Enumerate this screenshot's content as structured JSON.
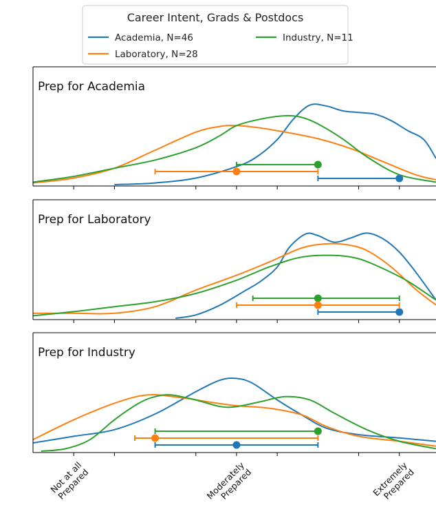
{
  "chart_data": {
    "type": "line",
    "title": "",
    "legend": {
      "title": "Career Intent, Grads & Postdocs",
      "placement": "top-center",
      "entries": [
        {
          "name": "Academia, N=46",
          "color": "#1f77b4"
        },
        {
          "name": "Laboratory, N=28",
          "color": "#ff7f0e"
        },
        {
          "name": "Industry, N=11",
          "color": "#2ca02c"
        }
      ]
    },
    "x_ticks": [
      {
        "value": 1,
        "label": [
          "Not at all",
          "Prepared"
        ]
      },
      {
        "value": 3,
        "label": [
          "Moderately",
          "Prepared"
        ]
      },
      {
        "value": 5,
        "label": [
          "Extremely",
          "Prepared"
        ]
      }
    ],
    "xlim": [
      0.5,
      5.45
    ],
    "grid": false,
    "panels": [
      {
        "title": "Prep for Academia",
        "ylim": [
          0,
          1
        ],
        "series": [
          {
            "name": "Academia, N=46",
            "color": "#1f77b4",
            "x": [
              1.5,
              2.0,
              2.5,
              3.0,
              3.25,
              3.5,
              3.7,
              3.9,
              4.1,
              4.3,
              4.5,
              4.7,
              4.9,
              5.1,
              5.3,
              5.45
            ],
            "y": [
              0.0,
              0.02,
              0.08,
              0.22,
              0.34,
              0.55,
              0.8,
              0.97,
              0.96,
              0.9,
              0.88,
              0.86,
              0.78,
              0.66,
              0.55,
              0.32
            ]
          },
          {
            "name": "Laboratory, N=28",
            "color": "#ff7f0e",
            "x": [
              0.5,
              1.0,
              1.5,
              2.0,
              2.5,
              2.8,
              3.0,
              3.3,
              3.6,
              4.0,
              4.4,
              4.8,
              5.2,
              5.45
            ],
            "y": [
              0.02,
              0.08,
              0.2,
              0.42,
              0.64,
              0.71,
              0.72,
              0.69,
              0.64,
              0.56,
              0.44,
              0.28,
              0.12,
              0.06
            ]
          },
          {
            "name": "Industry, N=11",
            "color": "#2ca02c",
            "x": [
              0.5,
              1.0,
              1.5,
              2.0,
              2.5,
              2.8,
              3.0,
              3.3,
              3.6,
              3.8,
              4.0,
              4.3,
              4.6,
              5.0,
              5.45
            ],
            "y": [
              0.03,
              0.1,
              0.2,
              0.3,
              0.45,
              0.6,
              0.72,
              0.8,
              0.84,
              0.82,
              0.74,
              0.56,
              0.34,
              0.12,
              0.03
            ]
          }
        ],
        "intervals": [
          {
            "name": "Industry, N=11",
            "color": "#2ca02c",
            "low": 3.0,
            "high": 4.0,
            "point": 4.0
          },
          {
            "name": "Laboratory, N=28",
            "color": "#ff7f0e",
            "low": 2.0,
            "high": 4.0,
            "point": 3.0
          },
          {
            "name": "Academia, N=46",
            "color": "#1f77b4",
            "low": 4.0,
            "high": 5.0,
            "point": 5.0
          }
        ]
      },
      {
        "title": "Prep for Laboratory",
        "ylim": [
          0,
          1
        ],
        "series": [
          {
            "name": "Academia, N=46",
            "color": "#1f77b4",
            "x": [
              2.25,
              2.5,
              2.8,
              3.1,
              3.3,
              3.5,
              3.65,
              3.85,
              4.0,
              4.2,
              4.4,
              4.6,
              4.8,
              5.0,
              5.2,
              5.45
            ],
            "y": [
              0.0,
              0.04,
              0.16,
              0.33,
              0.45,
              0.62,
              0.86,
              1.02,
              1.0,
              0.92,
              0.97,
              1.03,
              0.96,
              0.8,
              0.56,
              0.22
            ]
          },
          {
            "name": "Laboratory, N=28",
            "color": "#ff7f0e",
            "x": [
              0.5,
              1.0,
              1.5,
              2.0,
              2.5,
              3.0,
              3.4,
              3.8,
              4.1,
              4.35,
              4.6,
              4.9,
              5.2,
              5.45
            ],
            "y": [
              0.06,
              0.06,
              0.06,
              0.14,
              0.34,
              0.52,
              0.68,
              0.85,
              0.9,
              0.89,
              0.82,
              0.62,
              0.35,
              0.16
            ]
          },
          {
            "name": "Industry, N=11",
            "color": "#2ca02c",
            "x": [
              0.5,
              1.0,
              1.5,
              2.0,
              2.5,
              3.0,
              3.4,
              3.8,
              4.2,
              4.5,
              4.8,
              5.1,
              5.45
            ],
            "y": [
              0.03,
              0.08,
              0.14,
              0.2,
              0.3,
              0.46,
              0.62,
              0.74,
              0.76,
              0.72,
              0.6,
              0.45,
              0.22
            ]
          }
        ],
        "intervals": [
          {
            "name": "Industry, N=11",
            "color": "#2ca02c",
            "low": 3.2,
            "high": 5.0,
            "point": 4.0
          },
          {
            "name": "Laboratory, N=28",
            "color": "#ff7f0e",
            "low": 3.0,
            "high": 5.0,
            "point": 4.0
          },
          {
            "name": "Academia, N=46",
            "color": "#1f77b4",
            "low": 4.0,
            "high": 5.0,
            "point": 5.0
          }
        ]
      },
      {
        "title": "Prep for Industry",
        "ylim": [
          0,
          1
        ],
        "series": [
          {
            "name": "Academia, N=46",
            "color": "#1f77b4",
            "x": [
              0.5,
              1.0,
              1.5,
              2.0,
              2.5,
              2.8,
              3.0,
              3.2,
              3.5,
              3.8,
              4.1,
              4.5,
              5.0,
              5.45
            ],
            "y": [
              0.1,
              0.18,
              0.26,
              0.45,
              0.72,
              0.86,
              0.88,
              0.82,
              0.62,
              0.44,
              0.28,
              0.2,
              0.16,
              0.12
            ]
          },
          {
            "name": "Laboratory, N=28",
            "color": "#ff7f0e",
            "x": [
              0.5,
              1.0,
              1.5,
              1.9,
              2.3,
              2.7,
              3.0,
              3.4,
              3.8,
              4.1,
              4.5,
              5.0,
              5.45
            ],
            "y": [
              0.14,
              0.38,
              0.58,
              0.68,
              0.65,
              0.59,
              0.55,
              0.52,
              0.44,
              0.3,
              0.18,
              0.12,
              0.06
            ]
          },
          {
            "name": "Industry, N=11",
            "color": "#2ca02c",
            "x": [
              0.6,
              0.9,
              1.2,
              1.5,
              1.8,
              2.0,
              2.2,
              2.5,
              2.8,
              3.0,
              3.3,
              3.6,
              3.9,
              4.2,
              4.6,
              5.0,
              5.45
            ],
            "y": [
              0.0,
              0.03,
              0.14,
              0.38,
              0.58,
              0.66,
              0.68,
              0.62,
              0.54,
              0.54,
              0.6,
              0.66,
              0.62,
              0.46,
              0.26,
              0.12,
              0.03
            ]
          }
        ],
        "intervals": [
          {
            "name": "Industry, N=11",
            "color": "#2ca02c",
            "low": 2.0,
            "high": 4.0,
            "point": 4.0
          },
          {
            "name": "Laboratory, N=28",
            "color": "#ff7f0e",
            "low": 1.75,
            "high": 4.0,
            "point": 2.0
          },
          {
            "name": "Academia, N=46",
            "color": "#1f77b4",
            "low": 2.0,
            "high": 4.0,
            "point": 3.0
          }
        ]
      }
    ]
  }
}
